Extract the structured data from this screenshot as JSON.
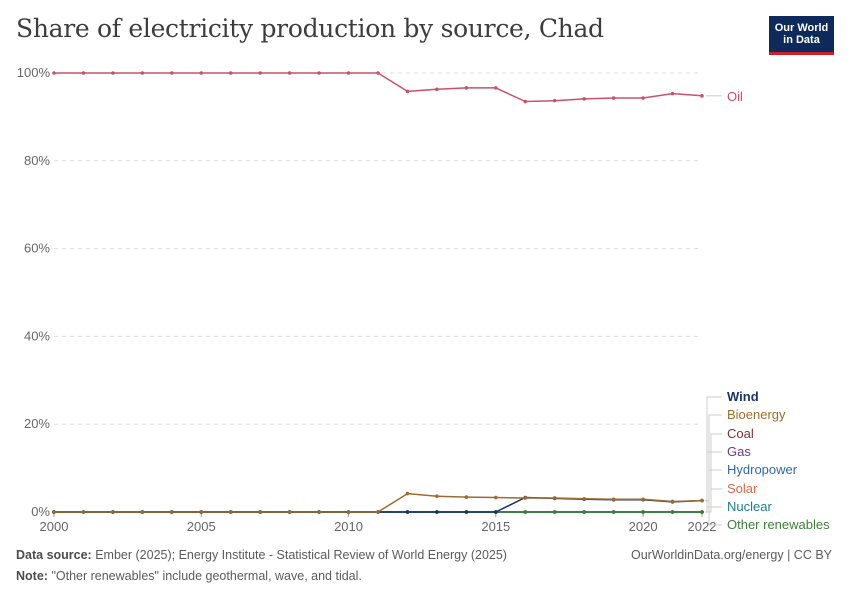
{
  "title": "Share of electricity production by source, Chad",
  "logo": {
    "line1": "Our World",
    "line2": "in Data"
  },
  "footer": {
    "source_label": "Data source:",
    "source_text": "Ember (2025); Energy Institute - Statistical Review of World Energy (2025)",
    "note_label": "Note:",
    "note_text": "\"Other renewables\" include geothermal, wave, and tidal.",
    "url": "OurWorldinData.org/energy | CC BY"
  },
  "colors": {
    "Oil": "#c9526a",
    "Wind": "#183567",
    "Bioenergy": "#9b6c2e",
    "Coal": "#7d2e3c",
    "Gas": "#6a3a8a",
    "Hydropower": "#2e6ab0",
    "Solar": "#d56a48",
    "Nuclear": "#1c7f86",
    "Other renewables": "#3e7f3a"
  },
  "chart_data": {
    "type": "line",
    "title": "Share of electricity production by source, Chad",
    "xlim": [
      2000,
      2022
    ],
    "ylim": [
      0,
      100
    ],
    "y_ticks": [
      0,
      20,
      40,
      60,
      80,
      100
    ],
    "y_tick_labels": [
      "0%",
      "20%",
      "40%",
      "60%",
      "80%",
      "100%"
    ],
    "x_ticks": [
      2000,
      2005,
      2010,
      2015,
      2020,
      2022
    ],
    "x_tick_labels": [
      "2000",
      "2005",
      "2010",
      "2015",
      "2020",
      "2022"
    ],
    "grid": true,
    "x": [
      2000,
      2001,
      2002,
      2003,
      2004,
      2005,
      2006,
      2007,
      2008,
      2009,
      2010,
      2011,
      2012,
      2013,
      2014,
      2015,
      2016,
      2017,
      2018,
      2019,
      2020,
      2021,
      2022
    ],
    "series": [
      {
        "name": "Oil",
        "values": [
          100,
          100,
          100,
          100,
          100,
          100,
          100,
          100,
          100,
          100,
          100,
          100,
          95.8,
          96.3,
          96.6,
          96.6,
          93.5,
          93.7,
          94.1,
          94.3,
          94.3,
          95.3,
          94.8
        ]
      },
      {
        "name": "Wind",
        "values": [
          0,
          0,
          0,
          0,
          0,
          0,
          0,
          0,
          0,
          0,
          0,
          0,
          0,
          0,
          0,
          0,
          3.3,
          3.1,
          2.9,
          2.8,
          2.8,
          2.3,
          2.6
        ]
      },
      {
        "name": "Bioenergy",
        "values": [
          0,
          0,
          0,
          0,
          0,
          0,
          0,
          0,
          0,
          0,
          0,
          0,
          4.2,
          3.6,
          3.4,
          3.3,
          3.2,
          3.2,
          3.0,
          2.9,
          2.9,
          2.4,
          2.6
        ]
      },
      {
        "name": "Coal",
        "values": [
          0,
          0,
          0,
          0,
          0,
          0,
          0,
          0,
          0,
          0,
          0,
          0,
          0,
          0,
          0,
          0,
          0,
          0,
          0,
          0,
          0,
          0,
          0
        ]
      },
      {
        "name": "Gas",
        "values": [
          0,
          0,
          0,
          0,
          0,
          0,
          0,
          0,
          0,
          0,
          0,
          0,
          0,
          0,
          0,
          0,
          0,
          0,
          0,
          0,
          0,
          0,
          0
        ]
      },
      {
        "name": "Hydropower",
        "values": [
          0,
          0,
          0,
          0,
          0,
          0,
          0,
          0,
          0,
          0,
          0,
          0,
          0,
          0,
          0,
          0,
          0,
          0,
          0,
          0,
          0,
          0,
          0
        ]
      },
      {
        "name": "Solar",
        "values": [
          0,
          0,
          0,
          0,
          0,
          0,
          0,
          0,
          0,
          0,
          0,
          0,
          0,
          0,
          0,
          0,
          0,
          0,
          0,
          0,
          0,
          0,
          0
        ]
      },
      {
        "name": "Nuclear",
        "values": [
          0,
          0,
          0,
          0,
          0,
          0,
          0,
          0,
          0,
          0,
          0,
          0,
          0,
          0,
          0,
          0,
          0,
          0,
          0,
          0,
          0,
          0,
          0
        ]
      },
      {
        "name": "Other renewables",
        "values": [
          0,
          0,
          0,
          0,
          0,
          0,
          0,
          0,
          0,
          0,
          0,
          0,
          0,
          0,
          0,
          0,
          0,
          0,
          0,
          0,
          0,
          0,
          0
        ]
      }
    ],
    "legend_placement": "right"
  }
}
